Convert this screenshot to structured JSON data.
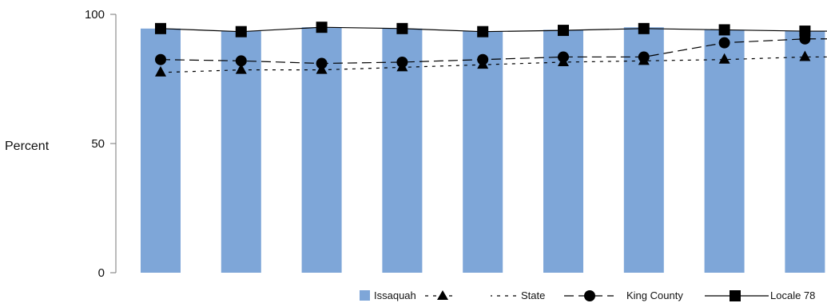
{
  "chart_data": {
    "type": "bar",
    "title": "",
    "xlabel": "",
    "ylabel": "Percent",
    "ylim": [
      0,
      100
    ],
    "yticks": [
      0,
      50,
      100
    ],
    "grid": false,
    "categories": [
      "",
      "",
      "",
      "",
      "",
      "",
      "",
      "",
      ""
    ],
    "series": [
      {
        "name": "Issaquah",
        "type": "bar",
        "color": "#7ea6d8",
        "values": [
          94.5,
          93.5,
          95,
          94.5,
          93.5,
          94,
          95,
          94,
          93.5
        ]
      },
      {
        "name": "State",
        "type": "line",
        "line_style": "dotted",
        "marker": "triangle",
        "color": "#000000",
        "values": [
          77.5,
          78.5,
          78.5,
          79.5,
          80.5,
          81.5,
          82,
          82.5,
          83.5
        ]
      },
      {
        "name": "King County",
        "type": "line",
        "line_style": "dashed",
        "marker": "circle",
        "color": "#000000",
        "values": [
          82.5,
          82,
          81,
          81.5,
          82.5,
          83.5,
          83.5,
          89,
          90.5
        ]
      },
      {
        "name": "Locale 78",
        "type": "line",
        "line_style": "solid",
        "marker": "square",
        "color": "#000000",
        "values": [
          94.5,
          93.3,
          95,
          94.5,
          93.3,
          93.8,
          94.5,
          94,
          93.5
        ]
      }
    ],
    "legend": {
      "placement": "bottom-right",
      "items": [
        {
          "label": "Issaquah",
          "marker": "bar"
        },
        {
          "label": "State",
          "marker": "triangle"
        },
        {
          "label": "King County",
          "marker": "circle"
        },
        {
          "label": "Locale 78",
          "marker": "square"
        }
      ]
    }
  }
}
